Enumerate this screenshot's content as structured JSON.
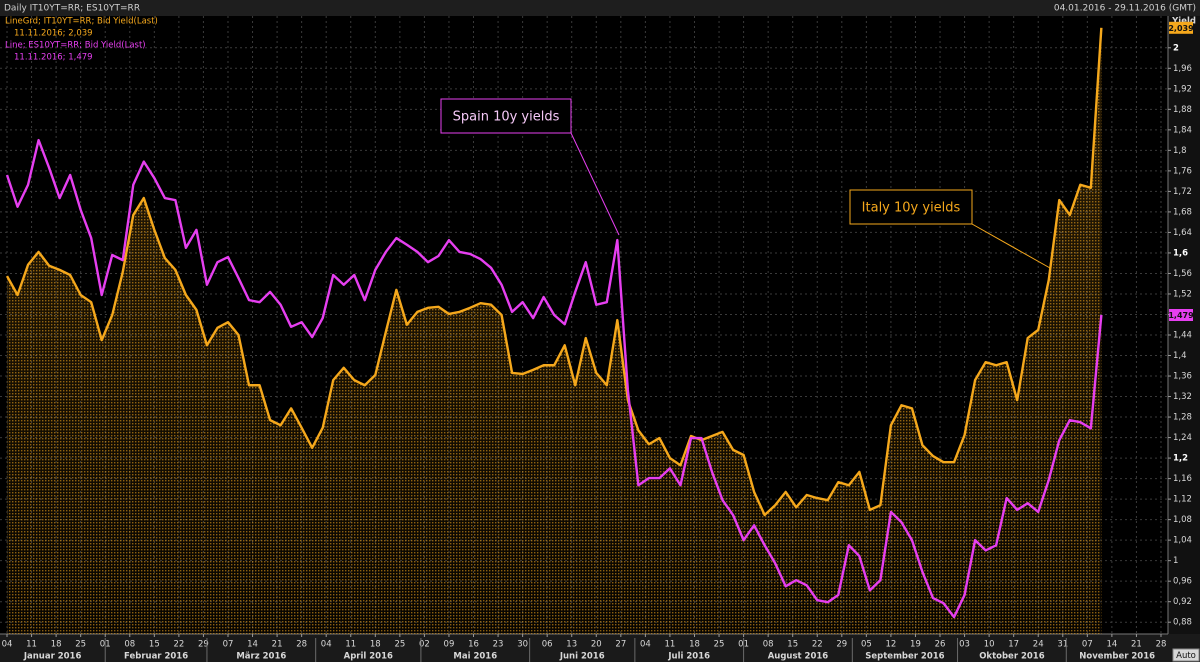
{
  "chart_data": {
    "type": "line",
    "title": "Daily IT10YT=RR; ES10YT=RR",
    "date_range": "04.01.2016 - 29.11.2016 (GMT)",
    "y_axis_label": "Yield",
    "x": [
      "2016-01-04",
      "2016-01-07",
      "2016-01-10",
      "2016-01-13",
      "2016-01-16",
      "2016-01-19",
      "2016-01-22",
      "2016-01-25",
      "2016-01-28",
      "2016-01-31",
      "2016-02-03",
      "2016-02-06",
      "2016-02-09",
      "2016-02-12",
      "2016-02-15",
      "2016-02-18",
      "2016-02-21",
      "2016-02-24",
      "2016-02-27",
      "2016-03-01",
      "2016-03-04",
      "2016-03-07",
      "2016-03-10",
      "2016-03-13",
      "2016-03-16",
      "2016-03-19",
      "2016-03-22",
      "2016-03-25",
      "2016-03-28",
      "2016-03-31",
      "2016-04-03",
      "2016-04-06",
      "2016-04-09",
      "2016-04-12",
      "2016-04-15",
      "2016-04-18",
      "2016-04-21",
      "2016-04-24",
      "2016-04-27",
      "2016-04-30",
      "2016-05-03",
      "2016-05-06",
      "2016-05-09",
      "2016-05-12",
      "2016-05-15",
      "2016-05-18",
      "2016-05-21",
      "2016-05-24",
      "2016-05-27",
      "2016-05-30",
      "2016-06-02",
      "2016-06-05",
      "2016-06-08",
      "2016-06-11",
      "2016-06-14",
      "2016-06-17",
      "2016-06-20",
      "2016-06-23",
      "2016-06-26",
      "2016-06-29",
      "2016-07-02",
      "2016-07-05",
      "2016-07-08",
      "2016-07-11",
      "2016-07-14",
      "2016-07-17",
      "2016-07-20",
      "2016-07-23",
      "2016-07-26",
      "2016-07-29",
      "2016-08-01",
      "2016-08-04",
      "2016-08-07",
      "2016-08-10",
      "2016-08-13",
      "2016-08-16",
      "2016-08-19",
      "2016-08-22",
      "2016-08-25",
      "2016-08-28",
      "2016-08-31",
      "2016-09-03",
      "2016-09-06",
      "2016-09-09",
      "2016-09-12",
      "2016-09-15",
      "2016-09-18",
      "2016-09-21",
      "2016-09-24",
      "2016-09-27",
      "2016-09-30",
      "2016-10-03",
      "2016-10-06",
      "2016-10-09",
      "2016-10-12",
      "2016-10-15",
      "2016-10-18",
      "2016-10-21",
      "2016-10-24",
      "2016-10-27",
      "2016-10-30",
      "2016-11-02",
      "2016-11-05",
      "2016-11-08",
      "2016-11-11"
    ],
    "series": [
      {
        "name": "LineGrd; IT10YT=RR; Bid Yield(Last)",
        "legend_detail": "11.11.2016; 2,039",
        "end_label": "2,039",
        "color": "#f5a81c",
        "area": true,
        "values": [
          1.555,
          1.518,
          1.577,
          1.602,
          1.575,
          1.567,
          1.557,
          1.518,
          1.504,
          1.43,
          1.479,
          1.563,
          1.674,
          1.707,
          1.645,
          1.59,
          1.567,
          1.518,
          1.489,
          1.42,
          1.454,
          1.465,
          1.44,
          1.342,
          1.342,
          1.274,
          1.264,
          1.297,
          1.259,
          1.22,
          1.259,
          1.352,
          1.376,
          1.352,
          1.342,
          1.362,
          1.446,
          1.528,
          1.46,
          1.485,
          1.493,
          1.495,
          1.481,
          1.485,
          1.493,
          1.502,
          1.499,
          1.479,
          1.366,
          1.364,
          1.372,
          1.381,
          1.381,
          1.42,
          1.342,
          1.434,
          1.366,
          1.342,
          1.469,
          1.313,
          1.254,
          1.227,
          1.239,
          1.2,
          1.186,
          1.243,
          1.235,
          1.243,
          1.251,
          1.216,
          1.206,
          1.134,
          1.089,
          1.108,
          1.134,
          1.104,
          1.128,
          1.122,
          1.118,
          1.153,
          1.147,
          1.173,
          1.099,
          1.108,
          1.264,
          1.303,
          1.297,
          1.225,
          1.204,
          1.192,
          1.192,
          1.245,
          1.352,
          1.387,
          1.381,
          1.387,
          1.313,
          1.434,
          1.45,
          1.547,
          1.703,
          1.674,
          1.733,
          1.727,
          2.039
        ]
      },
      {
        "name": "Line; ES10YT=RR; Bid Yield(Last)",
        "legend_detail": "11.11.2016; 1,479",
        "end_label": "1,479",
        "color": "#e63ff0",
        "area": false,
        "values": [
          1.752,
          1.69,
          1.733,
          1.82,
          1.766,
          1.707,
          1.752,
          1.684,
          1.629,
          1.518,
          1.596,
          1.586,
          1.733,
          1.778,
          1.746,
          1.707,
          1.703,
          1.61,
          1.645,
          1.538,
          1.582,
          1.592,
          1.551,
          1.508,
          1.504,
          1.524,
          1.499,
          1.456,
          1.465,
          1.436,
          1.473,
          1.557,
          1.538,
          1.557,
          1.508,
          1.567,
          1.602,
          1.629,
          1.616,
          1.602,
          1.582,
          1.594,
          1.625,
          1.602,
          1.598,
          1.588,
          1.571,
          1.538,
          1.485,
          1.504,
          1.473,
          1.514,
          1.479,
          1.461,
          1.524,
          1.582,
          1.499,
          1.504,
          1.625,
          1.333,
          1.147,
          1.161,
          1.161,
          1.18,
          1.147,
          1.239,
          1.239,
          1.173,
          1.118,
          1.089,
          1.04,
          1.069,
          1.03,
          0.995,
          0.95,
          0.962,
          0.952,
          0.923,
          0.919,
          0.933,
          1.03,
          1.009,
          0.942,
          0.962,
          1.095,
          1.075,
          1.04,
          0.978,
          0.927,
          0.917,
          0.89,
          0.933,
          1.04,
          1.02,
          1.03,
          1.122,
          1.099,
          1.112,
          1.095,
          1.157,
          1.235,
          1.274,
          1.27,
          1.258,
          1.479
        ]
      }
    ],
    "xlim": [
      "2016-01-02",
      "2016-11-30"
    ],
    "xticks": [
      {
        "value": "2016-01-04",
        "label": "04"
      },
      {
        "value": "2016-01-11",
        "label": "11"
      },
      {
        "value": "2016-01-18",
        "label": "18"
      },
      {
        "value": "2016-01-25",
        "label": "25"
      },
      {
        "value": "2016-02-01",
        "label": "01"
      },
      {
        "value": "2016-02-08",
        "label": "08"
      },
      {
        "value": "2016-02-15",
        "label": "15"
      },
      {
        "value": "2016-02-22",
        "label": "22"
      },
      {
        "value": "2016-02-29",
        "label": "29"
      },
      {
        "value": "2016-03-07",
        "label": "07"
      },
      {
        "value": "2016-03-14",
        "label": "14"
      },
      {
        "value": "2016-03-21",
        "label": "21"
      },
      {
        "value": "2016-03-28",
        "label": "28"
      },
      {
        "value": "2016-04-04",
        "label": "04"
      },
      {
        "value": "2016-04-11",
        "label": "11"
      },
      {
        "value": "2016-04-18",
        "label": "18"
      },
      {
        "value": "2016-04-25",
        "label": "25"
      },
      {
        "value": "2016-05-02",
        "label": "02"
      },
      {
        "value": "2016-05-09",
        "label": "09"
      },
      {
        "value": "2016-05-16",
        "label": "16"
      },
      {
        "value": "2016-05-23",
        "label": "23"
      },
      {
        "value": "2016-05-30",
        "label": "30"
      },
      {
        "value": "2016-06-06",
        "label": "06"
      },
      {
        "value": "2016-06-13",
        "label": "13"
      },
      {
        "value": "2016-06-20",
        "label": "20"
      },
      {
        "value": "2016-06-27",
        "label": "27"
      },
      {
        "value": "2016-07-04",
        "label": "04"
      },
      {
        "value": "2016-07-11",
        "label": "11"
      },
      {
        "value": "2016-07-18",
        "label": "18"
      },
      {
        "value": "2016-07-25",
        "label": "25"
      },
      {
        "value": "2016-08-01",
        "label": "01"
      },
      {
        "value": "2016-08-08",
        "label": "08"
      },
      {
        "value": "2016-08-15",
        "label": "15"
      },
      {
        "value": "2016-08-22",
        "label": "22"
      },
      {
        "value": "2016-08-29",
        "label": "29"
      },
      {
        "value": "2016-09-05",
        "label": "05"
      },
      {
        "value": "2016-09-12",
        "label": "12"
      },
      {
        "value": "2016-09-19",
        "label": "19"
      },
      {
        "value": "2016-09-26",
        "label": "26"
      },
      {
        "value": "2016-10-03",
        "label": "03"
      },
      {
        "value": "2016-10-10",
        "label": "10"
      },
      {
        "value": "2016-10-17",
        "label": "17"
      },
      {
        "value": "2016-10-24",
        "label": "24"
      },
      {
        "value": "2016-10-31",
        "label": "31"
      },
      {
        "value": "2016-11-07",
        "label": "07"
      },
      {
        "value": "2016-11-14",
        "label": "14"
      },
      {
        "value": "2016-11-21",
        "label": "21"
      },
      {
        "value": "2016-11-28",
        "label": "28"
      }
    ],
    "month_labels": [
      {
        "value": "2016-01-01",
        "label": "Januar 2016"
      },
      {
        "value": "2016-02-01",
        "label": "Februar 2016"
      },
      {
        "value": "2016-03-01",
        "label": "März 2016"
      },
      {
        "value": "2016-04-01",
        "label": "April 2016"
      },
      {
        "value": "2016-05-01",
        "label": "Mai 2016"
      },
      {
        "value": "2016-06-01",
        "label": "Juni 2016"
      },
      {
        "value": "2016-07-01",
        "label": "Juli 2016"
      },
      {
        "value": "2016-08-01",
        "label": "August 2016"
      },
      {
        "value": "2016-09-01",
        "label": "September 2016"
      },
      {
        "value": "2016-10-01",
        "label": "Oktober 2016"
      },
      {
        "value": "2016-11-01",
        "label": "November 2016"
      }
    ],
    "ylim": [
      0.857,
      2.062
    ],
    "yticks": [
      {
        "value": 0.88,
        "label": "0,88"
      },
      {
        "value": 0.92,
        "label": "0,92"
      },
      {
        "value": 0.96,
        "label": "0,96"
      },
      1,
      {
        "value": 1.04,
        "label": "1,04"
      },
      {
        "value": 1.08,
        "label": "1,08"
      },
      {
        "value": 1.12,
        "label": "1,12"
      },
      {
        "value": 1.16,
        "label": "1,16"
      },
      {
        "value": 1.2,
        "label": "1,2"
      },
      {
        "value": 1.24,
        "label": "1,24"
      },
      {
        "value": 1.28,
        "label": "1,28"
      },
      {
        "value": 1.32,
        "label": "1,32"
      },
      {
        "value": 1.36,
        "label": "1,36"
      },
      {
        "value": 1.4,
        "label": "1,4"
      },
      {
        "value": 1.44,
        "label": "1,44"
      },
      {
        "value": 1.48,
        "label": "1,48"
      },
      {
        "value": 1.52,
        "label": "1,52"
      },
      {
        "value": 1.56,
        "label": "1,56"
      },
      {
        "value": 1.6,
        "label": "1,6"
      },
      {
        "value": 1.64,
        "label": "1,64"
      },
      {
        "value": 1.68,
        "label": "1,68"
      },
      {
        "value": 1.72,
        "label": "1,72"
      },
      {
        "value": 1.76,
        "label": "1,76"
      },
      {
        "value": 1.8,
        "label": "1,8"
      },
      {
        "value": 1.84,
        "label": "1,84"
      },
      {
        "value": 1.88,
        "label": "1,88"
      },
      {
        "value": 1.92,
        "label": "1,92"
      },
      {
        "value": 1.96,
        "label": "1,96"
      },
      2
    ],
    "grid": true,
    "axis_side": "right",
    "annotations": [
      {
        "text": "Spain 10y yields",
        "color": "#e63ff0",
        "text_color": "#f6c9f8"
      },
      {
        "text": "Italy 10y yields",
        "color": "#f5a81c",
        "text_color": "#f5a81c"
      }
    ],
    "auto_button": "Auto"
  }
}
